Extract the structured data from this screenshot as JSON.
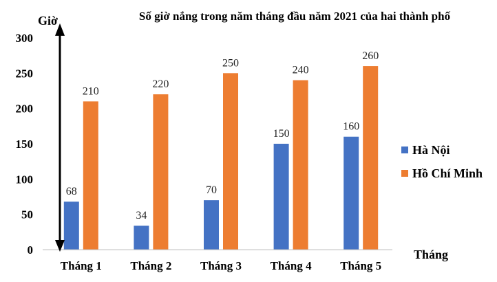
{
  "chart_data": {
    "type": "bar",
    "title": "Số giờ nắng trong năm tháng đầu năm 2021 của hai thành phố",
    "ylabel": "Giờ",
    "xlabel": "Tháng",
    "categories": [
      "Tháng 1",
      "Tháng 2",
      "Tháng 3",
      "Tháng 4",
      "Tháng 5"
    ],
    "yticks": [
      0,
      50,
      100,
      150,
      200,
      250,
      300
    ],
    "ylim": [
      0,
      300
    ],
    "grid": false,
    "legend_position": "right",
    "series": [
      {
        "name": "Hà Nội",
        "color": "#4472C4",
        "values": [
          68,
          34,
          70,
          150,
          160
        ]
      },
      {
        "name": "Hồ Chí Minh",
        "color": "#ED7D31",
        "values": [
          210,
          220,
          250,
          240,
          260
        ]
      }
    ]
  }
}
